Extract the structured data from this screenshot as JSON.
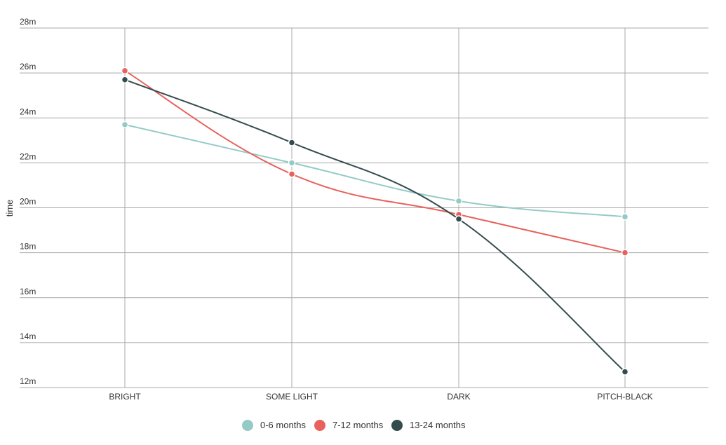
{
  "chart_data": {
    "type": "line",
    "ylabel": "time",
    "y_unit_suffix": "m",
    "ylim": [
      12,
      28
    ],
    "y_ticks": [
      12,
      14,
      16,
      18,
      20,
      22,
      24,
      26,
      28
    ],
    "categories": [
      "BRIGHT",
      "SOME LIGHT",
      "DARK",
      "PITCH-BLACK"
    ],
    "grid": true,
    "legend_position": "bottom-center",
    "series": [
      {
        "name": "0-6 months",
        "color": "#94cbc6",
        "values": [
          23.7,
          22.0,
          20.3,
          19.6
        ]
      },
      {
        "name": "7-12 months",
        "color": "#e8615d",
        "values": [
          26.1,
          21.5,
          19.7,
          18.0
        ]
      },
      {
        "name": "13-24 months",
        "color": "#354c4e",
        "values": [
          25.7,
          22.9,
          19.5,
          12.7
        ]
      }
    ]
  }
}
